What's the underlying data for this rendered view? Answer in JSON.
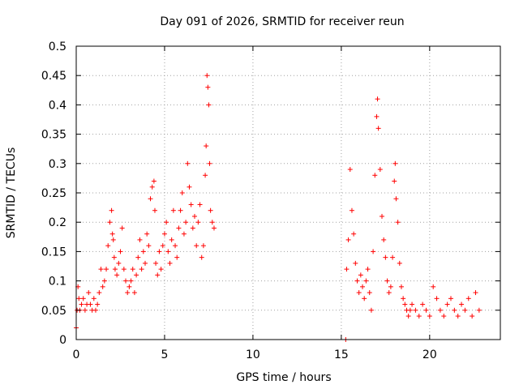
{
  "chart_data": {
    "type": "scatter",
    "title": "Day 091 of 2026, SRMTID for receiver reun",
    "xlabel": "GPS time / hours",
    "ylabel": "SRMTID / TECUs",
    "xlim": [
      0,
      24
    ],
    "ylim": [
      0,
      0.5
    ],
    "xticks": [
      0,
      5,
      10,
      15,
      20
    ],
    "xtick_labels": [
      "0",
      "5",
      "10",
      "15",
      "20"
    ],
    "yticks": [
      0,
      0.05,
      0.1,
      0.15,
      0.2,
      0.25,
      0.3,
      0.35,
      0.4,
      0.45,
      0.5
    ],
    "ytick_labels": [
      "0",
      "0.05",
      "0.1",
      "0.15",
      "0.2",
      "0.25",
      "0.3",
      "0.35",
      "0.4",
      "0.45",
      "0.5"
    ],
    "grid": true,
    "marker": "+",
    "marker_color": "#ff0000",
    "series": [
      {
        "name": "SRMTID",
        "x": [
          0.0,
          0.05,
          0.1,
          0.15,
          0.2,
          0.3,
          0.4,
          0.5,
          0.6,
          0.7,
          0.8,
          0.9,
          1.0,
          1.1,
          1.2,
          1.3,
          1.4,
          1.5,
          1.6,
          1.7,
          1.8,
          1.9,
          2.0,
          2.05,
          2.1,
          2.15,
          2.2,
          2.3,
          2.4,
          2.5,
          2.6,
          2.7,
          2.8,
          2.9,
          3.0,
          3.1,
          3.2,
          3.3,
          3.4,
          3.5,
          3.6,
          3.7,
          3.8,
          3.9,
          4.0,
          4.1,
          4.2,
          4.3,
          4.4,
          4.45,
          4.5,
          4.6,
          4.7,
          4.8,
          4.9,
          5.0,
          5.1,
          5.2,
          5.3,
          5.4,
          5.5,
          5.6,
          5.7,
          5.8,
          5.9,
          6.0,
          6.1,
          6.2,
          6.3,
          6.4,
          6.5,
          6.6,
          6.7,
          6.8,
          6.9,
          7.0,
          7.1,
          7.2,
          7.3,
          7.35,
          7.4,
          7.45,
          7.5,
          7.55,
          7.6,
          7.7,
          7.8,
          15.25,
          15.3,
          15.4,
          15.5,
          15.6,
          15.7,
          15.8,
          15.9,
          16.0,
          16.1,
          16.2,
          16.3,
          16.4,
          16.5,
          16.6,
          16.7,
          16.8,
          16.9,
          17.0,
          17.05,
          17.1,
          17.2,
          17.3,
          17.4,
          17.5,
          17.6,
          17.7,
          17.8,
          17.9,
          18.0,
          18.05,
          18.1,
          18.2,
          18.3,
          18.4,
          18.5,
          18.6,
          18.7,
          18.8,
          18.9,
          19.0,
          19.2,
          19.4,
          19.6,
          19.8,
          20.0,
          20.2,
          20.4,
          20.6,
          20.8,
          21.0,
          21.2,
          21.4,
          21.6,
          21.8,
          22.0,
          22.2,
          22.4,
          22.6,
          22.8
        ],
        "y": [
          0.02,
          0.05,
          0.09,
          0.07,
          0.05,
          0.06,
          0.07,
          0.05,
          0.06,
          0.08,
          0.06,
          0.05,
          0.07,
          0.05,
          0.06,
          0.08,
          0.12,
          0.09,
          0.1,
          0.12,
          0.16,
          0.2,
          0.22,
          0.18,
          0.17,
          0.14,
          0.12,
          0.11,
          0.13,
          0.15,
          0.19,
          0.12,
          0.1,
          0.08,
          0.09,
          0.1,
          0.12,
          0.08,
          0.11,
          0.14,
          0.17,
          0.12,
          0.15,
          0.13,
          0.18,
          0.16,
          0.24,
          0.26,
          0.27,
          0.22,
          0.13,
          0.11,
          0.15,
          0.12,
          0.16,
          0.18,
          0.2,
          0.15,
          0.13,
          0.17,
          0.22,
          0.16,
          0.14,
          0.19,
          0.22,
          0.25,
          0.18,
          0.2,
          0.3,
          0.26,
          0.23,
          0.19,
          0.21,
          0.16,
          0.2,
          0.23,
          0.14,
          0.16,
          0.28,
          0.33,
          0.45,
          0.43,
          0.4,
          0.3,
          0.22,
          0.2,
          0.19,
          0.0,
          0.12,
          0.17,
          0.29,
          0.22,
          0.18,
          0.13,
          0.1,
          0.08,
          0.11,
          0.09,
          0.07,
          0.1,
          0.12,
          0.08,
          0.05,
          0.15,
          0.28,
          0.38,
          0.41,
          0.36,
          0.29,
          0.21,
          0.17,
          0.14,
          0.1,
          0.08,
          0.09,
          0.14,
          0.27,
          0.3,
          0.24,
          0.2,
          0.13,
          0.09,
          0.07,
          0.06,
          0.05,
          0.04,
          0.05,
          0.06,
          0.05,
          0.04,
          0.06,
          0.05,
          0.04,
          0.09,
          0.07,
          0.05,
          0.04,
          0.06,
          0.07,
          0.05,
          0.04,
          0.06,
          0.05,
          0.07,
          0.04,
          0.08,
          0.05
        ]
      }
    ]
  }
}
